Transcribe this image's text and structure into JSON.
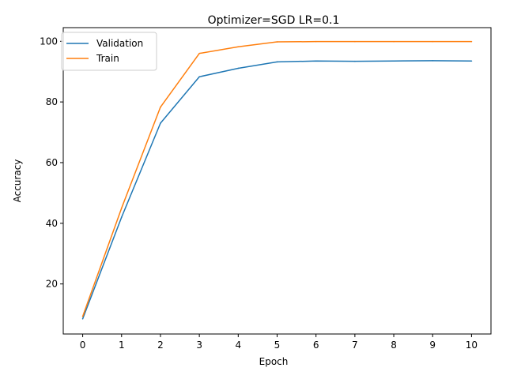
{
  "chart_data": {
    "type": "line",
    "title": "Optimizer=SGD LR=0.1",
    "xlabel": "Epoch",
    "ylabel": "Accuracy",
    "x": [
      0,
      1,
      2,
      3,
      4,
      5,
      6,
      7,
      8,
      9,
      10
    ],
    "xticks": [
      "0",
      "1",
      "2",
      "3",
      "4",
      "5",
      "6",
      "7",
      "8",
      "9",
      "10"
    ],
    "yticks": [
      "20",
      "40",
      "60",
      "80",
      "100"
    ],
    "xlim": [
      -0.5,
      10.5
    ],
    "ylim": [
      3.5,
      104.5
    ],
    "grid": false,
    "legend_position": "upper-left",
    "series": [
      {
        "name": "Validation",
        "color": "#1f77b4",
        "values": [
          8.5,
          42.0,
          73.0,
          88.3,
          91.1,
          93.2,
          93.5,
          93.4,
          93.5,
          93.6,
          93.5
        ]
      },
      {
        "name": "Train",
        "color": "#ff7f0e",
        "values": [
          9.3,
          45.0,
          78.3,
          96.0,
          98.2,
          99.8,
          99.9,
          99.9,
          99.9,
          99.9,
          99.9
        ]
      }
    ]
  }
}
